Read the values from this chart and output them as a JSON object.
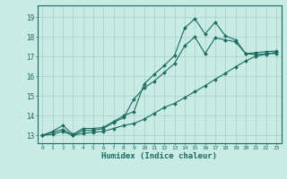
{
  "xlabel": "Humidex (Indice chaleur)",
  "bg_color": "#c8ebe4",
  "grid_color": "#aad4cc",
  "line_color": "#1a6b60",
  "xlim": [
    -0.5,
    23.5
  ],
  "ylim": [
    12.6,
    19.6
  ],
  "xticks": [
    0,
    1,
    2,
    3,
    4,
    5,
    6,
    7,
    8,
    9,
    10,
    11,
    12,
    13,
    14,
    15,
    16,
    17,
    18,
    19,
    20,
    21,
    22,
    23
  ],
  "yticks": [
    13,
    14,
    15,
    16,
    17,
    18,
    19
  ],
  "line1_x": [
    0,
    1,
    2,
    3,
    4,
    5,
    6,
    7,
    8,
    9,
    10,
    11,
    12,
    13,
    14,
    15,
    16,
    17,
    18,
    19,
    20,
    21,
    22,
    23
  ],
  "line1_y": [
    13.0,
    13.2,
    13.5,
    13.05,
    13.35,
    13.35,
    13.4,
    13.7,
    14.0,
    14.2,
    15.6,
    16.1,
    16.55,
    17.05,
    18.45,
    18.92,
    18.15,
    18.75,
    18.05,
    17.85,
    17.15,
    17.2,
    17.25,
    17.28
  ],
  "line2_x": [
    0,
    2,
    3,
    4,
    5,
    6,
    7,
    8,
    9,
    10,
    11,
    12,
    13,
    14,
    15,
    16,
    17,
    18,
    19,
    20,
    21,
    22,
    23
  ],
  "line2_y": [
    13.0,
    13.3,
    13.0,
    13.25,
    13.25,
    13.35,
    13.65,
    13.9,
    14.85,
    15.4,
    15.75,
    16.2,
    16.65,
    17.55,
    18.0,
    17.15,
    17.95,
    17.85,
    17.75,
    17.15,
    17.1,
    17.15,
    17.15
  ],
  "line3_x": [
    0,
    1,
    2,
    3,
    4,
    5,
    6,
    7,
    8,
    9,
    10,
    11,
    12,
    13,
    14,
    15,
    16,
    17,
    18,
    19,
    20,
    21,
    22,
    23
  ],
  "line3_y": [
    13.0,
    13.05,
    13.2,
    13.0,
    13.1,
    13.15,
    13.2,
    13.35,
    13.5,
    13.6,
    13.82,
    14.12,
    14.42,
    14.62,
    14.92,
    15.22,
    15.52,
    15.85,
    16.15,
    16.48,
    16.78,
    17.02,
    17.12,
    17.22
  ]
}
